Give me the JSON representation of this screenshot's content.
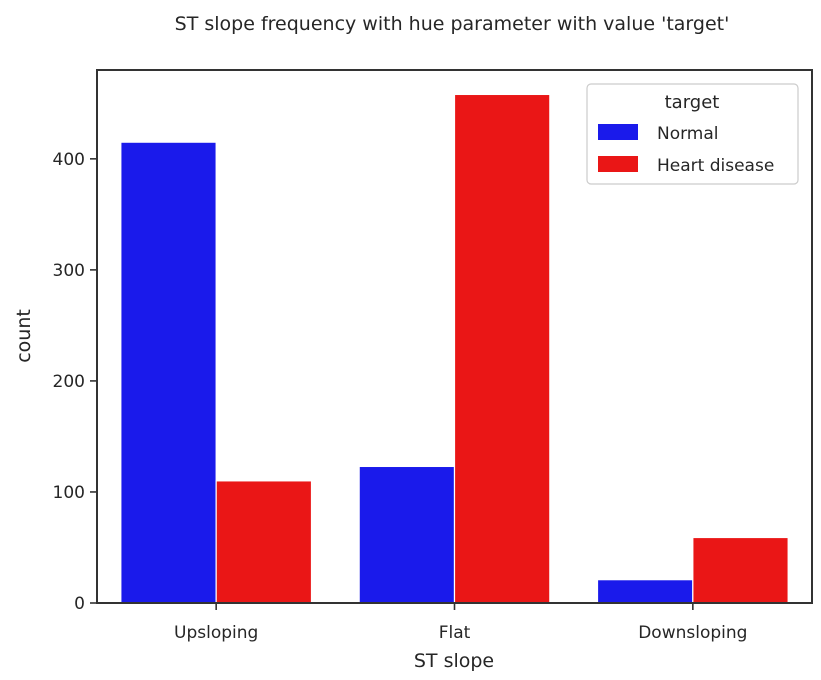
{
  "chart_data": {
    "type": "bar",
    "title": "ST slope frequency with hue parameter with value 'target'",
    "xlabel": "ST slope",
    "ylabel": "count",
    "categories": [
      "Upsloping",
      "Flat",
      "Downsloping"
    ],
    "series": [
      {
        "name": "Normal",
        "color": "#1a1aeb",
        "values": [
          415,
          123,
          21
        ]
      },
      {
        "name": "Heart disease",
        "color": "#ea1616",
        "values": [
          110,
          458,
          59
        ]
      }
    ],
    "ylim": [
      0,
      480
    ],
    "yticks": [
      0,
      100,
      200,
      300,
      400
    ],
    "legend": {
      "title": "target",
      "placement": "top-right"
    },
    "grid": false
  }
}
